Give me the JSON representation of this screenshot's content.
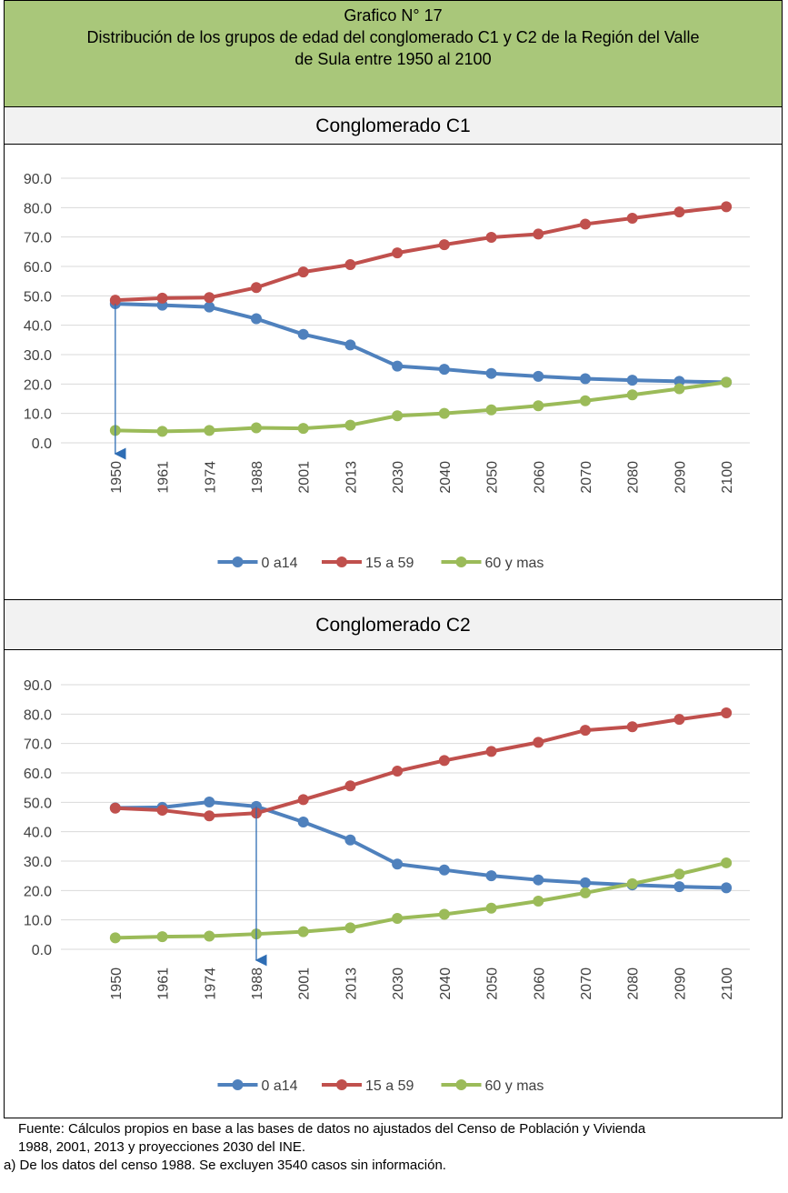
{
  "header": {
    "title": "Grafico N° 17",
    "subtitle_lines": [
      "Distribución de los grupos de edad del conglomerado C1 y C2 de  la Región del Valle",
      "de Sula entre 1950 al 2100"
    ]
  },
  "chart_data": [
    {
      "type": "line",
      "title": "Conglomerado C1",
      "categories": [
        "1950",
        "1961",
        "1974",
        "1988",
        "2001",
        "2013",
        "2030",
        "2040",
        "2050",
        "2060",
        "2070",
        "2080",
        "2090",
        "2100"
      ],
      "series": [
        {
          "name": "0 a14",
          "color": "#4f81bd",
          "values": [
            47.3,
            46.8,
            46.2,
            42.2,
            36.9,
            33.3,
            26.1,
            25.0,
            23.6,
            22.6,
            21.8,
            21.3,
            20.9,
            20.6
          ]
        },
        {
          "name": "15 a 59",
          "color": "#c0504d",
          "values": [
            48.5,
            49.2,
            49.4,
            52.8,
            58.1,
            60.6,
            64.6,
            67.4,
            69.9,
            71.0,
            74.4,
            76.4,
            78.5,
            80.3
          ]
        },
        {
          "name": "60 y mas",
          "color": "#9bbb59",
          "values": [
            4.2,
            3.9,
            4.2,
            5.1,
            4.9,
            6.0,
            9.2,
            10.0,
            11.2,
            12.6,
            14.3,
            16.3,
            18.4,
            20.6
          ]
        }
      ],
      "ylim": [
        0,
        90
      ],
      "yticks": [
        {
          "value": 0,
          "label": "0.0"
        },
        {
          "value": 10,
          "label": "10.0"
        },
        {
          "value": 20,
          "label": "20.0"
        },
        {
          "value": 30,
          "label": "30.0"
        },
        {
          "value": 40,
          "label": "40.0"
        },
        {
          "value": 50,
          "label": "50.0"
        },
        {
          "value": 60,
          "label": "60.0"
        },
        {
          "value": 70,
          "label": "70.0"
        },
        {
          "value": 80,
          "label": "80.0"
        },
        {
          "value": 90,
          "label": "90.0"
        }
      ],
      "grid": true,
      "legend": "bottom"
    },
    {
      "type": "line",
      "title": "Conglomerado C2",
      "categories": [
        "1950",
        "1961",
        "1974",
        "1988",
        "2001",
        "2013",
        "2030",
        "2040",
        "2050",
        "2060",
        "2070",
        "2080",
        "2090",
        "2100"
      ],
      "series": [
        {
          "name": "0 a14",
          "color": "#4f81bd",
          "values": [
            48.1,
            48.3,
            50.1,
            48.6,
            43.3,
            37.2,
            29.0,
            27.0,
            25.0,
            23.6,
            22.6,
            21.9,
            21.3,
            20.9
          ]
        },
        {
          "name": "15 a 59",
          "color": "#c0504d",
          "values": [
            48.0,
            47.3,
            45.4,
            46.3,
            50.9,
            55.6,
            60.6,
            64.2,
            67.3,
            70.4,
            74.5,
            75.7,
            78.2,
            80.4
          ]
        },
        {
          "name": "60 y mas",
          "color": "#9bbb59",
          "values": [
            3.9,
            4.3,
            4.5,
            5.2,
            6.0,
            7.3,
            10.5,
            11.9,
            14.0,
            16.4,
            19.2,
            22.3,
            25.6,
            29.4
          ]
        }
      ],
      "ylim": [
        0,
        90
      ],
      "yticks": [
        {
          "value": 0,
          "label": "0.0"
        },
        {
          "value": 10,
          "label": "10.0"
        },
        {
          "value": 20,
          "label": "20.0"
        },
        {
          "value": 30,
          "label": "30.0"
        },
        {
          "value": 40,
          "label": "40.0"
        },
        {
          "value": 50,
          "label": "50.0"
        },
        {
          "value": 60,
          "label": "60.0"
        },
        {
          "value": 70,
          "label": "70.0"
        },
        {
          "value": 80,
          "label": "80.0"
        },
        {
          "value": 90,
          "label": "90.0"
        }
      ],
      "grid": true,
      "legend": "bottom"
    }
  ],
  "footer": {
    "source_lines": [
      "Fuente: Cálculos propios en base a las bases de datos no ajustados del Censo de Población y Vivienda",
      "1988, 2001, 2013 y proyecciones 2030 del INE."
    ],
    "note": "a) De los datos del censo 1988. Se excluyen 3540 casos  sin información."
  }
}
